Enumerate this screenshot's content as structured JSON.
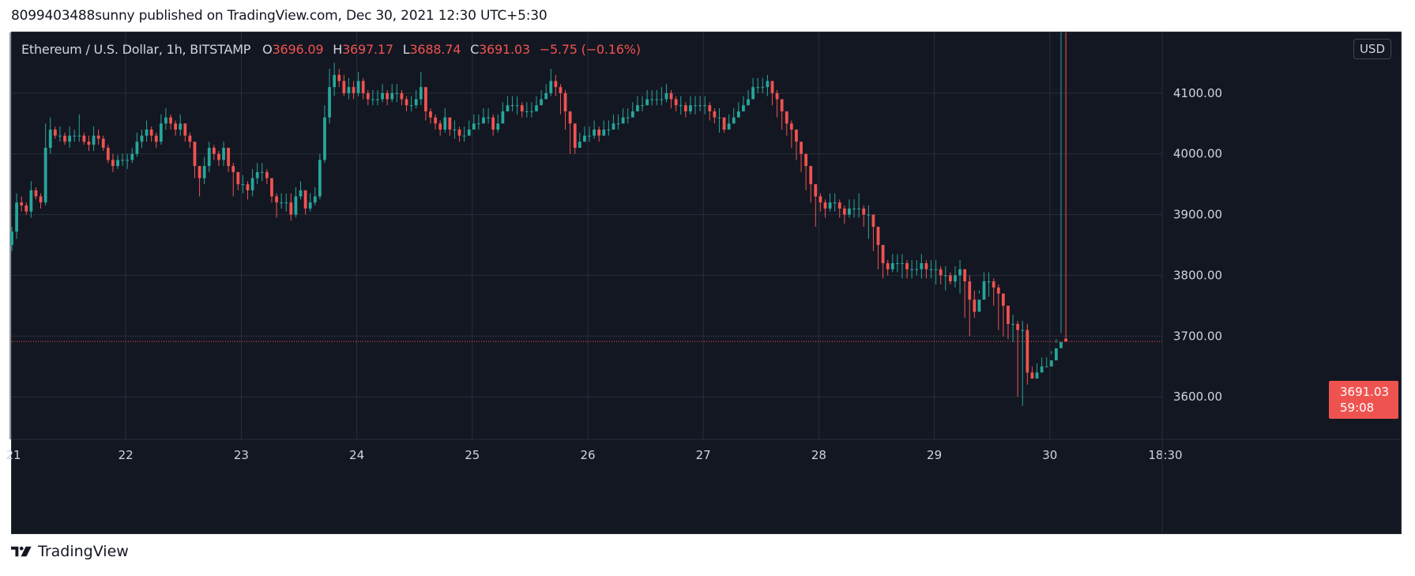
{
  "attribution": "8099403488sunny published on TradingView.com, Dec 30, 2021 12:30 UTC+5:30",
  "legend": {
    "symbol": "Ethereum / U.S. Dollar, 1h, BITSTAMP",
    "open_label": "O",
    "open": "3696.09",
    "high_label": "H",
    "high": "3697.17",
    "low_label": "L",
    "low": "3688.74",
    "close_label": "C",
    "close": "3691.03",
    "change": "−5.75 (−0.16%)"
  },
  "currency_button": "USD",
  "price_tag": {
    "price": "3691.03",
    "countdown": "59:08"
  },
  "footer_brand": "TradingView",
  "colors": {
    "background": "#131722",
    "grid": "#2a2e39",
    "up": "#26a69a",
    "down": "#ef5350",
    "text": "#d1d4dc"
  },
  "chart_data": {
    "type": "candlestick",
    "x_tick_labels": [
      "21",
      "22",
      "23",
      "24",
      "25",
      "26",
      "27",
      "28",
      "29",
      "30",
      "18:30"
    ],
    "y_tick_labels": [
      "3600.00",
      "3700.00",
      "3800.00",
      "3900.00",
      "4000.00",
      "4100.00"
    ],
    "y_ticks": [
      3600,
      3700,
      3800,
      3900,
      4000,
      4100
    ],
    "ylim": [
      3530,
      4200
    ],
    "last_price": 3691.03,
    "grid": true,
    "interval_hours": 1,
    "candles_per_day": 24,
    "days": [
      "21",
      "22",
      "23",
      "24",
      "25",
      "26",
      "27",
      "28",
      "29",
      "30"
    ],
    "close": [
      3872,
      3920,
      3915,
      3905,
      3940,
      3930,
      3920,
      4010,
      4040,
      4030,
      4030,
      4020,
      4030,
      4030,
      4030,
      4020,
      4015,
      4030,
      4025,
      4010,
      3990,
      3980,
      3990,
      3990,
      3990,
      4000,
      4020,
      4030,
      4040,
      4030,
      4020,
      4050,
      4060,
      4050,
      4040,
      4050,
      4030,
      4020,
      3980,
      3960,
      3980,
      4010,
      4000,
      3990,
      4010,
      3980,
      3970,
      3950,
      3950,
      3940,
      3960,
      3970,
      3970,
      3960,
      3930,
      3920,
      3920,
      3920,
      3900,
      3930,
      3940,
      3910,
      3920,
      3930,
      3990,
      4060,
      4110,
      4130,
      4120,
      4100,
      4110,
      4100,
      4120,
      4100,
      4090,
      4090,
      4090,
      4100,
      4090,
      4100,
      4100,
      4090,
      4080,
      4080,
      4090,
      4110,
      4070,
      4060,
      4050,
      4040,
      4060,
      4040,
      4040,
      4030,
      4030,
      4040,
      4050,
      4050,
      4060,
      4060,
      4040,
      4050,
      4070,
      4080,
      4080,
      4080,
      4070,
      4070,
      4070,
      4080,
      4090,
      4100,
      4120,
      4110,
      4100,
      4070,
      4050,
      4010,
      4020,
      4030,
      4030,
      4040,
      4030,
      4040,
      4040,
      4050,
      4050,
      4060,
      4060,
      4070,
      4080,
      4080,
      4090,
      4090,
      4090,
      4090,
      4100,
      4090,
      4080,
      4080,
      4070,
      4080,
      4080,
      4080,
      4080,
      4070,
      4060,
      4060,
      4040,
      4050,
      4060,
      4070,
      4080,
      4090,
      4110,
      4110,
      4110,
      4120,
      4100,
      4090,
      4070,
      4050,
      4040,
      4020,
      4000,
      3980,
      3950,
      3930,
      3920,
      3910,
      3920,
      3920,
      3910,
      3900,
      3910,
      3910,
      3910,
      3900,
      3900,
      3880,
      3850,
      3820,
      3810,
      3820,
      3820,
      3820,
      3810,
      3810,
      3810,
      3820,
      3810,
      3810,
      3810,
      3800,
      3800,
      3790,
      3800,
      3810,
      3790,
      3760,
      3740,
      3760,
      3790,
      3790,
      3780,
      3770,
      3750,
      3720,
      3720,
      3710,
      3710,
      3640,
      3630,
      3640,
      3650,
      3650,
      3660,
      3680,
      3690,
      3691
    ],
    "open": [
      3850,
      3872,
      3920,
      3915,
      3905,
      3940,
      3930,
      3920,
      4010,
      4040,
      4030,
      4030,
      4020,
      4030,
      4030,
      4030,
      4020,
      4015,
      4030,
      4025,
      4010,
      3990,
      3980,
      3990,
      3990,
      3990,
      4000,
      4020,
      4030,
      4040,
      4030,
      4020,
      4050,
      4060,
      4050,
      4040,
      4050,
      4030,
      4020,
      3980,
      3960,
      3980,
      4010,
      4000,
      3990,
      4010,
      3980,
      3970,
      3950,
      3950,
      3940,
      3960,
      3970,
      3970,
      3960,
      3930,
      3920,
      3920,
      3920,
      3900,
      3930,
      3940,
      3910,
      3920,
      3930,
      3990,
      4060,
      4110,
      4130,
      4120,
      4100,
      4110,
      4100,
      4120,
      4100,
      4090,
      4090,
      4090,
      4100,
      4090,
      4100,
      4100,
      4090,
      4080,
      4080,
      4090,
      4110,
      4070,
      4060,
      4050,
      4040,
      4060,
      4040,
      4040,
      4030,
      4030,
      4040,
      4050,
      4050,
      4060,
      4060,
      4040,
      4050,
      4070,
      4080,
      4080,
      4080,
      4070,
      4070,
      4070,
      4080,
      4090,
      4100,
      4120,
      4110,
      4100,
      4070,
      4050,
      4010,
      4020,
      4030,
      4030,
      4040,
      4030,
      4040,
      4040,
      4050,
      4050,
      4060,
      4060,
      4070,
      4080,
      4080,
      4090,
      4090,
      4090,
      4090,
      4100,
      4090,
      4080,
      4080,
      4070,
      4080,
      4080,
      4080,
      4080,
      4070,
      4060,
      4060,
      4040,
      4050,
      4060,
      4070,
      4080,
      4090,
      4110,
      4110,
      4110,
      4120,
      4100,
      4090,
      4070,
      4050,
      4040,
      4020,
      4000,
      3980,
      3950,
      3930,
      3920,
      3910,
      3920,
      3920,
      3910,
      3900,
      3910,
      3910,
      3910,
      3900,
      3900,
      3880,
      3850,
      3820,
      3810,
      3820,
      3820,
      3820,
      3810,
      3810,
      3810,
      3820,
      3810,
      3810,
      3810,
      3800,
      3800,
      3790,
      3800,
      3810,
      3790,
      3760,
      3740,
      3760,
      3790,
      3790,
      3780,
      3770,
      3750,
      3720,
      3720,
      3710,
      3710,
      3640,
      3630,
      3640,
      3650,
      3650,
      3660,
      3680,
      3696.09
    ],
    "high": [
      3880,
      3935,
      3930,
      3920,
      3955,
      3945,
      3935,
      4050,
      4060,
      4045,
      4045,
      4035,
      4045,
      4040,
      4065,
      4035,
      4030,
      4045,
      4040,
      4030,
      4015,
      4000,
      3998,
      4000,
      4000,
      4010,
      4035,
      4040,
      4055,
      4045,
      4035,
      4065,
      4075,
      4065,
      4055,
      4065,
      4050,
      4035,
      4000,
      3980,
      3995,
      4020,
      4015,
      4005,
      4020,
      3995,
      3985,
      3965,
      3965,
      3955,
      3975,
      3985,
      3985,
      3975,
      3945,
      3935,
      3935,
      3935,
      3935,
      3945,
      3955,
      3925,
      3935,
      3945,
      4000,
      4080,
      4140,
      4150,
      4140,
      4130,
      4125,
      4120,
      4135,
      4125,
      4105,
      4105,
      4105,
      4115,
      4105,
      4115,
      4115,
      4105,
      4095,
      4095,
      4105,
      4135,
      4100,
      4075,
      4065,
      4055,
      4075,
      4055,
      4055,
      4045,
      4045,
      4055,
      4065,
      4065,
      4075,
      4075,
      4065,
      4065,
      4085,
      4095,
      4095,
      4095,
      4085,
      4085,
      4085,
      4095,
      4105,
      4115,
      4140,
      4130,
      4115,
      4105,
      4070,
      4030,
      4035,
      4045,
      4045,
      4055,
      4045,
      4055,
      4055,
      4065,
      4065,
      4075,
      4075,
      4085,
      4095,
      4095,
      4105,
      4105,
      4105,
      4110,
      4115,
      4105,
      4095,
      4095,
      4085,
      4095,
      4095,
      4095,
      4095,
      4085,
      4075,
      4075,
      4060,
      4065,
      4075,
      4085,
      4095,
      4105,
      4125,
      4125,
      4125,
      4130,
      4115,
      4105,
      4090,
      4065,
      4055,
      4040,
      4015,
      4000,
      3970,
      3950,
      3935,
      3925,
      3935,
      3935,
      3925,
      3915,
      3925,
      3925,
      3935,
      3915,
      3915,
      3900,
      3870,
      3840,
      3825,
      3835,
      3835,
      3835,
      3825,
      3825,
      3825,
      3835,
      3825,
      3825,
      3825,
      3815,
      3815,
      3805,
      3815,
      3825,
      3810,
      3800,
      3775,
      3775,
      3805,
      3805,
      3795,
      3785,
      3765,
      3740,
      3735,
      3725,
      3725,
      3720,
      3650,
      3655,
      3665,
      3665,
      3675,
      3695,
      3705,
      3697.17
    ],
    "low": [
      3840,
      3860,
      3905,
      3900,
      3895,
      3925,
      3910,
      3915,
      4000,
      4025,
      4020,
      4015,
      4010,
      4020,
      4020,
      4015,
      4005,
      4005,
      4015,
      4005,
      3985,
      3970,
      3975,
      3980,
      3975,
      3985,
      3995,
      4010,
      4020,
      4020,
      4010,
      4015,
      4040,
      4040,
      4030,
      4030,
      4020,
      4010,
      3960,
      3930,
      3950,
      3970,
      3990,
      3980,
      3980,
      3970,
      3930,
      3940,
      3935,
      3925,
      3930,
      3950,
      3955,
      3950,
      3920,
      3895,
      3910,
      3905,
      3890,
      3895,
      3925,
      3900,
      3905,
      3915,
      3925,
      3985,
      4050,
      4095,
      4110,
      4095,
      4090,
      4090,
      4095,
      4090,
      4080,
      4080,
      4080,
      4085,
      4080,
      4085,
      4085,
      4080,
      4070,
      4070,
      4075,
      4080,
      4055,
      4050,
      4040,
      4030,
      4035,
      4030,
      4025,
      4020,
      4020,
      4030,
      4040,
      4040,
      4050,
      4050,
      4030,
      4035,
      4060,
      4070,
      4070,
      4065,
      4060,
      4060,
      4060,
      4070,
      4080,
      4090,
      4095,
      4095,
      4065,
      4040,
      4000,
      4000,
      4010,
      4020,
      4020,
      4025,
      4020,
      4030,
      4030,
      4040,
      4040,
      4050,
      4050,
      4060,
      4070,
      4070,
      4080,
      4080,
      4080,
      4080,
      4085,
      4075,
      4070,
      4065,
      4060,
      4065,
      4065,
      4070,
      4065,
      4055,
      4050,
      4035,
      4035,
      4040,
      4050,
      4060,
      4070,
      4080,
      4100,
      4100,
      4100,
      4095,
      4080,
      4060,
      4040,
      4030,
      4010,
      3990,
      3970,
      3940,
      3920,
      3880,
      3905,
      3895,
      3905,
      3905,
      3895,
      3885,
      3895,
      3895,
      3895,
      3880,
      3860,
      3840,
      3810,
      3795,
      3800,
      3805,
      3805,
      3795,
      3795,
      3795,
      3800,
      3795,
      3795,
      3795,
      3785,
      3785,
      3775,
      3785,
      3780,
      3770,
      3730,
      3700,
      3730,
      3770,
      3775,
      3765,
      3750,
      3710,
      3700,
      3695,
      3690,
      3600,
      3585,
      3620,
      3630,
      3635,
      3640,
      3650,
      3670,
      3688.74
    ]
  }
}
